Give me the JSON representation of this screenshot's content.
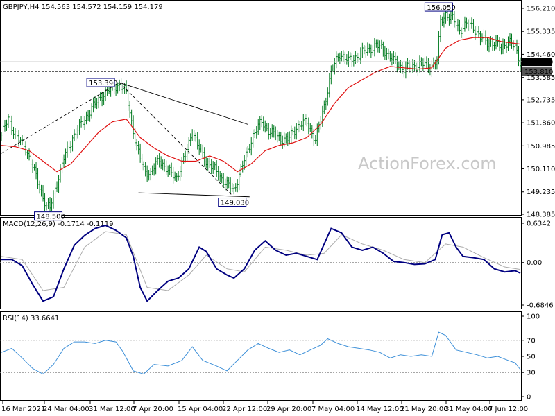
{
  "header": {
    "main": "GBPJPY,H4  154.563 154.572 154.159 154.179",
    "macd": "MACD(12,26,9) -0.1714 -0.1119",
    "rsi": "RSI(14) 33.6641"
  },
  "watermark": "ActionForex.com",
  "colors": {
    "candle": "#007a1f",
    "ma": "#e01010",
    "macd_main": "#000080",
    "macd_signal": "#aaaaaa",
    "rsi": "#3c8fd8",
    "grid": "#d0d0d0",
    "axis": "#000000"
  },
  "chart_data": [
    {
      "type": "candlestick",
      "symbol": "GBPJPY",
      "timeframe": "H4",
      "ylim": [
        148.385,
        156.21
      ],
      "y_ticks": [
        "156.210",
        "155.335",
        "154.460",
        "153.585",
        "152.735",
        "151.860",
        "150.985",
        "150.110",
        "149.235",
        "148.385"
      ],
      "x_ticks": [
        "16 Mar 2021",
        "24 Mar 04:00",
        "31 Mar 12:00",
        "7 Apr 20:00",
        "15 Apr 04:00",
        "22 Apr 12:00",
        "29 Apr 20:00",
        "7 May 04:00",
        "14 May 12:00",
        "21 May 20:00",
        "31 May 04:00",
        "7 Jun 12:00"
      ],
      "close_path": [
        [
          0,
          151.4
        ],
        [
          4,
          152.0
        ],
        [
          9,
          151.3
        ],
        [
          14,
          150.9
        ],
        [
          18,
          150.2
        ],
        [
          22,
          149.4
        ],
        [
          26,
          148.7
        ],
        [
          28,
          148.6
        ],
        [
          32,
          149.6
        ],
        [
          36,
          150.5
        ],
        [
          41,
          151.3
        ],
        [
          46,
          151.8
        ],
        [
          52,
          152.4
        ],
        [
          58,
          152.9
        ],
        [
          64,
          153.2
        ],
        [
          68,
          153.3
        ],
        [
          72,
          153.0
        ],
        [
          75,
          151.9
        ],
        [
          78,
          150.9
        ],
        [
          82,
          150.1
        ],
        [
          86,
          149.9
        ],
        [
          91,
          150.5
        ],
        [
          96,
          150.0
        ],
        [
          101,
          149.8
        ],
        [
          106,
          150.6
        ],
        [
          110,
          151.6
        ],
        [
          113,
          151.0
        ],
        [
          118,
          150.4
        ],
        [
          124,
          150.0
        ],
        [
          130,
          149.5
        ],
        [
          134,
          149.3
        ],
        [
          137,
          149.9
        ],
        [
          141,
          150.6
        ],
        [
          145,
          151.4
        ],
        [
          150,
          151.9
        ],
        [
          155,
          151.5
        ],
        [
          160,
          151.3
        ],
        [
          165,
          151.2
        ],
        [
          170,
          151.7
        ],
        [
          176,
          151.9
        ],
        [
          181,
          151.2
        ],
        [
          186,
          152.5
        ],
        [
          190,
          153.8
        ],
        [
          195,
          154.5
        ],
        [
          200,
          154.2
        ],
        [
          205,
          154.4
        ],
        [
          210,
          154.6
        ],
        [
          216,
          154.8
        ],
        [
          221,
          154.6
        ],
        [
          226,
          154.2
        ],
        [
          232,
          153.9
        ],
        [
          237,
          154.0
        ],
        [
          242,
          154.1
        ],
        [
          247,
          154.0
        ],
        [
          251,
          154.2
        ],
        [
          253,
          155.7
        ],
        [
          256,
          156.0
        ],
        [
          260,
          155.8
        ],
        [
          264,
          155.4
        ],
        [
          268,
          155.6
        ],
        [
          272,
          155.5
        ],
        [
          276,
          155.1
        ],
        [
          280,
          154.9
        ],
        [
          284,
          154.9
        ],
        [
          288,
          154.7
        ],
        [
          292,
          155.0
        ],
        [
          296,
          154.7
        ],
        [
          299,
          154.18
        ]
      ],
      "moving_average": [
        [
          0,
          151.0
        ],
        [
          8,
          150.95
        ],
        [
          16,
          150.8
        ],
        [
          24,
          150.4
        ],
        [
          32,
          150.0
        ],
        [
          40,
          150.3
        ],
        [
          48,
          150.9
        ],
        [
          56,
          151.5
        ],
        [
          64,
          151.9
        ],
        [
          72,
          152.0
        ],
        [
          80,
          151.3
        ],
        [
          88,
          150.9
        ],
        [
          96,
          150.6
        ],
        [
          104,
          150.4
        ],
        [
          112,
          150.4
        ],
        [
          120,
          150.6
        ],
        [
          128,
          150.4
        ],
        [
          136,
          150.0
        ],
        [
          144,
          150.3
        ],
        [
          152,
          150.8
        ],
        [
          160,
          151.0
        ],
        [
          168,
          151.1
        ],
        [
          176,
          151.3
        ],
        [
          184,
          151.8
        ],
        [
          192,
          152.6
        ],
        [
          200,
          153.2
        ],
        [
          208,
          153.5
        ],
        [
          216,
          153.8
        ],
        [
          224,
          154.0
        ],
        [
          232,
          153.95
        ],
        [
          240,
          153.9
        ],
        [
          248,
          153.95
        ],
        [
          256,
          154.7
        ],
        [
          264,
          155.0
        ],
        [
          272,
          155.1
        ],
        [
          280,
          155.1
        ],
        [
          288,
          154.95
        ],
        [
          299,
          154.85
        ]
      ],
      "annotations": [
        {
          "label": "156.050",
          "x": 252,
          "y": 156.05
        },
        {
          "label": "153.390",
          "x": 66,
          "y": 153.39
        },
        {
          "label": "149.030",
          "x": 133,
          "y": 149.03
        },
        {
          "label": "148.500",
          "x": 27,
          "y": 148.5
        },
        {
          "label": "153.810",
          "x": 299,
          "y": 153.81,
          "type": "horizontal-line"
        },
        {
          "label": "154.179",
          "x": 299,
          "y": 154.179,
          "type": "price-marker"
        }
      ],
      "trend_lines": [
        {
          "type": "solid",
          "points": [
            [
              68,
              153.39
            ],
            [
              142,
              151.8
            ]
          ]
        },
        {
          "type": "solid",
          "points": [
            [
              79,
              149.2
            ],
            [
              143,
              149.05
            ]
          ]
        },
        {
          "type": "dashed",
          "points": [
            [
              68,
              153.39
            ],
            [
              133,
              149.1
            ]
          ]
        },
        {
          "type": "dashed",
          "points": [
            [
              0,
              150.7
            ],
            [
              68,
              153.39
            ]
          ]
        }
      ]
    },
    {
      "type": "line",
      "name": "MACD(12,26,9)",
      "ylim": [
        -0.6846,
        0.6342
      ],
      "y_ticks": [
        "0.6342",
        "0.00",
        "-0.6846"
      ],
      "series": [
        {
          "name": "main",
          "values": [
            [
              0,
              0.05
            ],
            [
              6,
              0.05
            ],
            [
              12,
              -0.05
            ],
            [
              18,
              -0.35
            ],
            [
              24,
              -0.62
            ],
            [
              30,
              -0.55
            ],
            [
              36,
              -0.1
            ],
            [
              42,
              0.28
            ],
            [
              48,
              0.44
            ],
            [
              54,
              0.55
            ],
            [
              60,
              0.6
            ],
            [
              66,
              0.52
            ],
            [
              72,
              0.4
            ],
            [
              76,
              0.1
            ],
            [
              80,
              -0.4
            ],
            [
              84,
              -0.62
            ],
            [
              90,
              -0.45
            ],
            [
              96,
              -0.3
            ],
            [
              102,
              -0.25
            ],
            [
              108,
              -0.1
            ],
            [
              114,
              0.25
            ],
            [
              118,
              0.18
            ],
            [
              124,
              -0.1
            ],
            [
              130,
              -0.2
            ],
            [
              134,
              -0.25
            ],
            [
              140,
              -0.1
            ],
            [
              146,
              0.2
            ],
            [
              152,
              0.35
            ],
            [
              158,
              0.2
            ],
            [
              164,
              0.12
            ],
            [
              170,
              0.15
            ],
            [
              176,
              0.1
            ],
            [
              182,
              0.05
            ],
            [
              186,
              0.3
            ],
            [
              190,
              0.55
            ],
            [
              196,
              0.48
            ],
            [
              202,
              0.25
            ],
            [
              208,
              0.2
            ],
            [
              214,
              0.25
            ],
            [
              220,
              0.15
            ],
            [
              226,
              0.02
            ],
            [
              232,
              0.0
            ],
            [
              238,
              -0.03
            ],
            [
              244,
              -0.02
            ],
            [
              250,
              0.05
            ],
            [
              254,
              0.45
            ],
            [
              258,
              0.48
            ],
            [
              262,
              0.25
            ],
            [
              266,
              0.1
            ],
            [
              272,
              0.08
            ],
            [
              278,
              0.05
            ],
            [
              284,
              -0.1
            ],
            [
              290,
              -0.15
            ],
            [
              296,
              -0.13
            ],
            [
              299,
              -0.17
            ]
          ]
        },
        {
          "name": "signal",
          "values": [
            [
              0,
              0.1
            ],
            [
              12,
              0.05
            ],
            [
              24,
              -0.45
            ],
            [
              36,
              -0.4
            ],
            [
              48,
              0.25
            ],
            [
              60,
              0.5
            ],
            [
              72,
              0.45
            ],
            [
              84,
              -0.4
            ],
            [
              96,
              -0.45
            ],
            [
              108,
              -0.2
            ],
            [
              118,
              0.12
            ],
            [
              130,
              -0.1
            ],
            [
              140,
              -0.15
            ],
            [
              152,
              0.25
            ],
            [
              164,
              0.2
            ],
            [
              176,
              0.12
            ],
            [
              186,
              0.15
            ],
            [
              196,
              0.45
            ],
            [
              208,
              0.3
            ],
            [
              220,
              0.2
            ],
            [
              232,
              0.05
            ],
            [
              244,
              0.0
            ],
            [
              256,
              0.3
            ],
            [
              266,
              0.25
            ],
            [
              278,
              0.08
            ],
            [
              290,
              -0.07
            ],
            [
              299,
              -0.11
            ]
          ]
        }
      ]
    },
    {
      "type": "line",
      "name": "RSI(14)",
      "ylim": [
        0,
        100
      ],
      "y_ticks": [
        "100",
        "70",
        "50",
        "30",
        "0"
      ],
      "series": [
        {
          "name": "RSI",
          "values": [
            [
              0,
              55
            ],
            [
              6,
              60
            ],
            [
              12,
              48
            ],
            [
              18,
              35
            ],
            [
              24,
              28
            ],
            [
              30,
              40
            ],
            [
              36,
              60
            ],
            [
              42,
              68
            ],
            [
              48,
              68
            ],
            [
              54,
              66
            ],
            [
              60,
              70
            ],
            [
              66,
              68
            ],
            [
              70,
              56
            ],
            [
              76,
              32
            ],
            [
              82,
              28
            ],
            [
              88,
              40
            ],
            [
              96,
              38
            ],
            [
              104,
              45
            ],
            [
              110,
              62
            ],
            [
              116,
              45
            ],
            [
              124,
              38
            ],
            [
              130,
              32
            ],
            [
              136,
              45
            ],
            [
              142,
              58
            ],
            [
              148,
              66
            ],
            [
              154,
              60
            ],
            [
              160,
              55
            ],
            [
              166,
              58
            ],
            [
              172,
              52
            ],
            [
              178,
              58
            ],
            [
              184,
              64
            ],
            [
              188,
              72
            ],
            [
              194,
              66
            ],
            [
              200,
              62
            ],
            [
              206,
              60
            ],
            [
              212,
              58
            ],
            [
              218,
              55
            ],
            [
              224,
              48
            ],
            [
              230,
              52
            ],
            [
              236,
              50
            ],
            [
              242,
              52
            ],
            [
              248,
              50
            ],
            [
              252,
              80
            ],
            [
              256,
              76
            ],
            [
              262,
              58
            ],
            [
              268,
              55
            ],
            [
              274,
              52
            ],
            [
              280,
              48
            ],
            [
              286,
              50
            ],
            [
              292,
              45
            ],
            [
              296,
              42
            ],
            [
              299,
              33.66
            ]
          ]
        }
      ]
    }
  ]
}
